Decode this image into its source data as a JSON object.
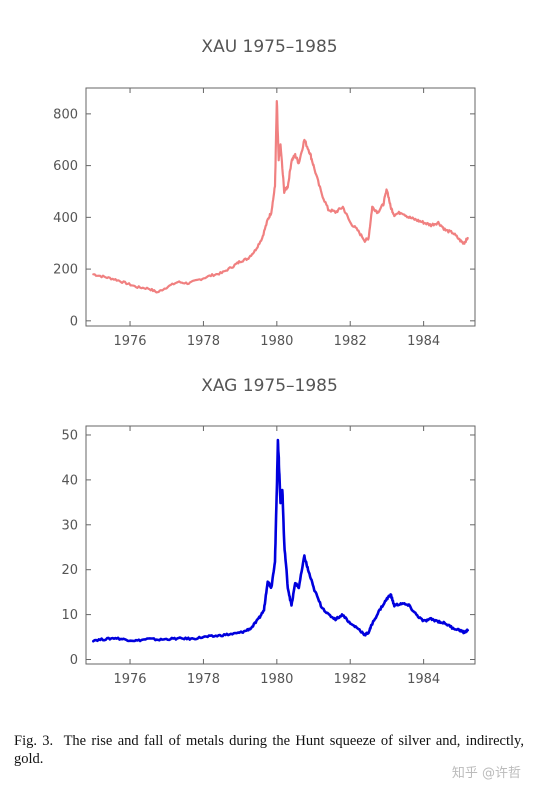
{
  "charts": [
    {
      "title": "XAU 1975–1985",
      "color": "#F08080",
      "xlim": [
        1974.8,
        1985.4
      ],
      "ylim": [
        -20,
        900
      ],
      "xticks": [
        1976,
        1978,
        1980,
        1982,
        1984
      ],
      "yticks": [
        0,
        200,
        400,
        600,
        800
      ]
    },
    {
      "title": "XAG 1975–1985",
      "color": "#0000DD",
      "xlim": [
        1974.8,
        1985.4
      ],
      "ylim": [
        -1,
        52
      ],
      "xticks": [
        1976,
        1978,
        1980,
        1982,
        1984
      ],
      "yticks": [
        0,
        10,
        20,
        30,
        40,
        50
      ]
    }
  ],
  "chart_data": [
    {
      "type": "line",
      "title": "XAU 1975–1985",
      "xlabel": "",
      "ylabel": "",
      "xlim": [
        1974.8,
        1985.4
      ],
      "ylim": [
        -20,
        900
      ],
      "grid": false,
      "series": [
        {
          "color": "#F08080",
          "x": [
            1975.0,
            1975.3,
            1975.6,
            1975.9,
            1976.2,
            1976.5,
            1976.75,
            1977.0,
            1977.3,
            1977.6,
            1977.9,
            1978.2,
            1978.5,
            1978.8,
            1979.0,
            1979.2,
            1979.4,
            1979.6,
            1979.75,
            1979.85,
            1979.95,
            1980.0,
            1980.05,
            1980.1,
            1980.2,
            1980.3,
            1980.4,
            1980.5,
            1980.6,
            1980.75,
            1980.9,
            1981.0,
            1981.2,
            1981.4,
            1981.6,
            1981.8,
            1982.0,
            1982.2,
            1982.4,
            1982.5,
            1982.6,
            1982.75,
            1982.9,
            1983.0,
            1983.1,
            1983.2,
            1983.4,
            1983.6,
            1983.8,
            1984.0,
            1984.2,
            1984.4,
            1984.6,
            1984.8,
            1985.0,
            1985.1,
            1985.2
          ],
          "values": [
            180,
            170,
            160,
            145,
            130,
            125,
            110,
            130,
            150,
            145,
            160,
            175,
            185,
            210,
            230,
            240,
            270,
            320,
            390,
            420,
            520,
            850,
            620,
            680,
            500,
            520,
            620,
            640,
            610,
            700,
            650,
            600,
            500,
            430,
            420,
            440,
            380,
            350,
            310,
            320,
            440,
            420,
            450,
            510,
            440,
            410,
            420,
            400,
            390,
            380,
            370,
            380,
            350,
            340,
            310,
            300,
            320
          ]
        }
      ]
    },
    {
      "type": "line",
      "title": "XAG 1975–1985",
      "xlabel": "",
      "ylabel": "",
      "xlim": [
        1974.8,
        1985.4
      ],
      "ylim": [
        -1,
        52
      ],
      "grid": false,
      "series": [
        {
          "color": "#0000DD",
          "x": [
            1975.0,
            1975.3,
            1975.6,
            1975.9,
            1976.2,
            1976.5,
            1976.8,
            1977.1,
            1977.4,
            1977.7,
            1978.0,
            1978.3,
            1978.6,
            1978.9,
            1979.1,
            1979.3,
            1979.5,
            1979.65,
            1979.75,
            1979.85,
            1979.95,
            1980.0,
            1980.03,
            1980.06,
            1980.1,
            1980.15,
            1980.2,
            1980.3,
            1980.4,
            1980.5,
            1980.6,
            1980.75,
            1980.85,
            1981.0,
            1981.2,
            1981.4,
            1981.6,
            1981.8,
            1982.0,
            1982.2,
            1982.4,
            1982.5,
            1982.6,
            1982.8,
            1983.0,
            1983.1,
            1983.2,
            1983.4,
            1983.6,
            1983.8,
            1984.0,
            1984.2,
            1984.4,
            1984.6,
            1984.8,
            1985.0,
            1985.1,
            1985.2
          ],
          "values": [
            4.3,
            4.5,
            4.8,
            4.4,
            4.2,
            4.6,
            4.4,
            4.6,
            4.7,
            4.6,
            5.0,
            5.2,
            5.5,
            5.8,
            6.2,
            7.0,
            9.0,
            11.0,
            17.5,
            16.0,
            22.0,
            38.0,
            49.0,
            43.0,
            35.0,
            38.0,
            26.0,
            16.0,
            12.0,
            17.0,
            16.0,
            23.0,
            20.0,
            16.0,
            12.0,
            10.0,
            9.0,
            10.0,
            8.0,
            7.0,
            5.5,
            6.0,
            8.0,
            11.0,
            13.5,
            14.5,
            12.0,
            12.5,
            12.0,
            10.0,
            8.5,
            9.0,
            8.5,
            8.0,
            7.0,
            6.5,
            6.0,
            6.5
          ]
        }
      ]
    }
  ],
  "caption": {
    "label": "Fig. 3.",
    "text": "The rise and fall of metals during the Hunt squeeze of silver and, indirectly, gold."
  },
  "watermark": "知乎 @许哲"
}
